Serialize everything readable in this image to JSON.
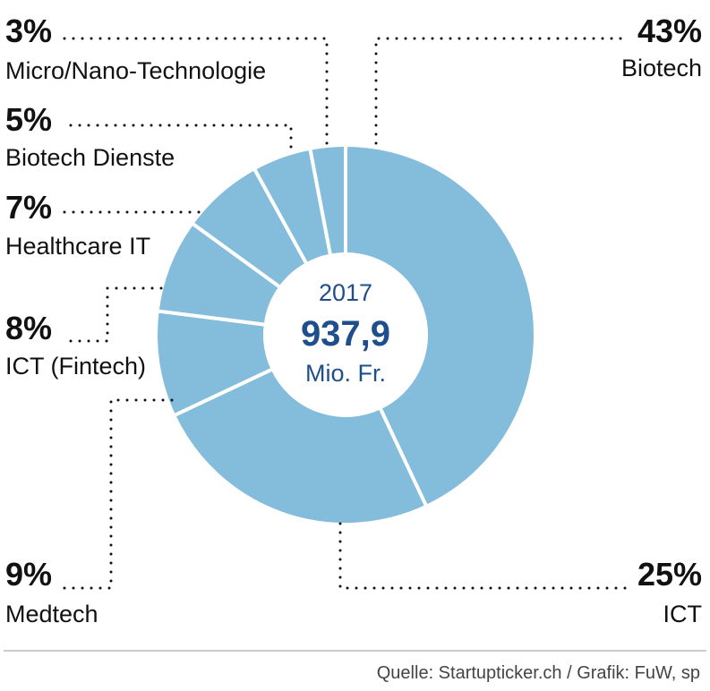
{
  "chart_data": {
    "type": "pie",
    "variant": "donut",
    "year": "2017",
    "total_value": "937,9",
    "total_unit": "Mio. Fr.",
    "slices": [
      {
        "name": "Biotech",
        "value": 43,
        "value_label": "43%"
      },
      {
        "name": "ICT",
        "value": 25,
        "value_label": "25%"
      },
      {
        "name": "Medtech",
        "value": 9,
        "value_label": "9%"
      },
      {
        "name": "ICT (Fintech)",
        "value": 8,
        "value_label": "8%"
      },
      {
        "name": "Healthcare IT",
        "value": 7,
        "value_label": "7%"
      },
      {
        "name": "Biotech Dienste",
        "value": 5,
        "value_label": "5%"
      },
      {
        "name": "Micro/Nano-Technologie",
        "value": 3,
        "value_label": "3%"
      }
    ],
    "source": "Quelle: Startupticker.ch / Grafik: FuW, sp"
  },
  "colors": {
    "slice_fill": "#84bcdc",
    "slice_separator": "#ffffff",
    "center_text": "#1f4e8c",
    "label_text": "#111111",
    "source_text": "#444444",
    "rule": "#999999"
  }
}
